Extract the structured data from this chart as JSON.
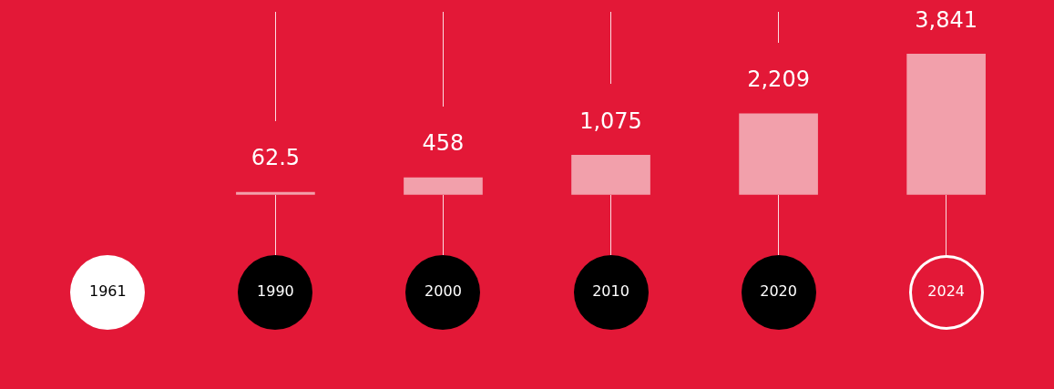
{
  "chart_data": {
    "type": "bar",
    "categories": [
      "1961",
      "1990",
      "2000",
      "2010",
      "2020",
      "2024"
    ],
    "values": [
      null,
      62.5,
      458,
      1075,
      2209,
      3841
    ],
    "value_labels": [
      null,
      "62.5",
      "458",
      "1,075",
      "2,209",
      "3,841"
    ],
    "color": "#f2a0ab",
    "grid": false,
    "legend": false
  }
}
